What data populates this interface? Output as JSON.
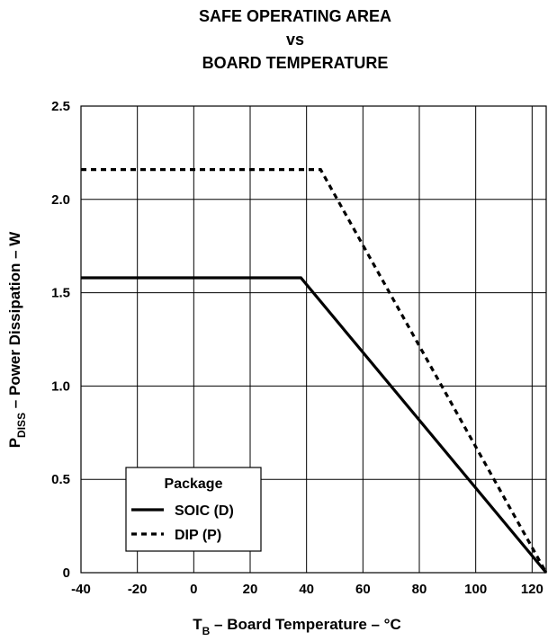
{
  "chart_data": {
    "type": "line",
    "title_lines": [
      "SAFE OPERATING AREA",
      "vs",
      "BOARD TEMPERATURE"
    ],
    "xlabel": {
      "main": "T",
      "sub": "B",
      "rest": " – Board Temperature – °C"
    },
    "ylabel": {
      "main": "P",
      "sub": "DISS",
      "rest": " – Power Dissipation – W"
    },
    "xlim": [
      -40,
      125
    ],
    "ylim": [
      0,
      2.5
    ],
    "x_ticks": [
      -40,
      -20,
      0,
      20,
      40,
      60,
      80,
      100,
      120
    ],
    "x_tick_labels": [
      "-40",
      "-20",
      "0",
      "20",
      "40",
      "60",
      "80",
      "100",
      "120"
    ],
    "y_ticks": [
      0,
      0.5,
      1.0,
      1.5,
      2.0,
      2.5
    ],
    "y_tick_labels": [
      "0",
      "0.5",
      "1.0",
      "1.5",
      "2.0",
      "2.5"
    ],
    "grid": true,
    "legend": {
      "title": "Package",
      "placement": "lower-left"
    },
    "series": [
      {
        "name": "SOIC (D)",
        "style": "solid",
        "x": [
          -40,
          38,
          125
        ],
        "y": [
          1.58,
          1.58,
          0
        ]
      },
      {
        "name": "DIP (P)",
        "style": "dashed",
        "x": [
          -40,
          45,
          125
        ],
        "y": [
          2.16,
          2.16,
          0
        ]
      }
    ]
  }
}
